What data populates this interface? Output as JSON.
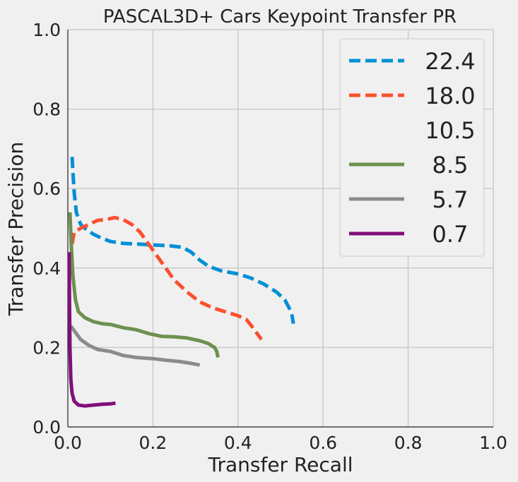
{
  "chart_data": {
    "type": "line",
    "title": "PASCAL3D+ Cars Keypoint Transfer PR",
    "xlabel": "Transfer Recall",
    "ylabel": "Transfer Precision",
    "xlim": [
      0,
      1
    ],
    "ylim": [
      0,
      1
    ],
    "xticks": [
      "0.0",
      "0.2",
      "0.4",
      "0.6",
      "0.8",
      "1.0"
    ],
    "yticks": [
      "0.0",
      "0.2",
      "0.4",
      "0.6",
      "0.8",
      "1.0"
    ],
    "grid": true,
    "legend_position": "top-right",
    "series": [
      {
        "name": "22.4",
        "color": "#008fd5",
        "style": "dashed",
        "points": [
          [
            0.01,
            0.68
          ],
          [
            0.012,
            0.64
          ],
          [
            0.015,
            0.59
          ],
          [
            0.02,
            0.54
          ],
          [
            0.03,
            0.51
          ],
          [
            0.04,
            0.5
          ],
          [
            0.06,
            0.485
          ],
          [
            0.08,
            0.475
          ],
          [
            0.1,
            0.467
          ],
          [
            0.13,
            0.462
          ],
          [
            0.17,
            0.46
          ],
          [
            0.2,
            0.458
          ],
          [
            0.24,
            0.456
          ],
          [
            0.27,
            0.452
          ],
          [
            0.29,
            0.44
          ],
          [
            0.31,
            0.42
          ],
          [
            0.33,
            0.405
          ],
          [
            0.36,
            0.393
          ],
          [
            0.4,
            0.385
          ],
          [
            0.43,
            0.375
          ],
          [
            0.46,
            0.36
          ],
          [
            0.49,
            0.34
          ],
          [
            0.51,
            0.32
          ],
          [
            0.52,
            0.3
          ],
          [
            0.527,
            0.28
          ],
          [
            0.53,
            0.26
          ]
        ]
      },
      {
        "name": "18.0",
        "color": "#fc4f30",
        "style": "dashed",
        "points": [
          [
            0.01,
            0.46
          ],
          [
            0.015,
            0.49
          ],
          [
            0.03,
            0.5
          ],
          [
            0.05,
            0.51
          ],
          [
            0.07,
            0.52
          ],
          [
            0.09,
            0.522
          ],
          [
            0.11,
            0.527
          ],
          [
            0.13,
            0.522
          ],
          [
            0.15,
            0.51
          ],
          [
            0.17,
            0.49
          ],
          [
            0.19,
            0.46
          ],
          [
            0.21,
            0.43
          ],
          [
            0.23,
            0.4
          ],
          [
            0.25,
            0.37
          ],
          [
            0.28,
            0.34
          ],
          [
            0.31,
            0.315
          ],
          [
            0.34,
            0.3
          ],
          [
            0.37,
            0.29
          ],
          [
            0.4,
            0.28
          ],
          [
            0.42,
            0.27
          ],
          [
            0.435,
            0.25
          ],
          [
            0.445,
            0.235
          ],
          [
            0.455,
            0.22
          ]
        ]
      },
      {
        "name": "10.5",
        "color": "#e5ae38",
        "style": "none",
        "points": []
      },
      {
        "name": "8.5",
        "color": "#6d904f",
        "style": "solid",
        "points": [
          [
            0.005,
            0.54
          ],
          [
            0.008,
            0.46
          ],
          [
            0.012,
            0.38
          ],
          [
            0.018,
            0.32
          ],
          [
            0.025,
            0.29
          ],
          [
            0.04,
            0.275
          ],
          [
            0.06,
            0.265
          ],
          [
            0.08,
            0.26
          ],
          [
            0.1,
            0.258
          ],
          [
            0.13,
            0.25
          ],
          [
            0.16,
            0.245
          ],
          [
            0.19,
            0.235
          ],
          [
            0.22,
            0.228
          ],
          [
            0.25,
            0.227
          ],
          [
            0.28,
            0.224
          ],
          [
            0.31,
            0.217
          ],
          [
            0.33,
            0.21
          ],
          [
            0.345,
            0.2
          ],
          [
            0.35,
            0.19
          ],
          [
            0.353,
            0.175
          ]
        ]
      },
      {
        "name": "5.7",
        "color": "#8b8b8b",
        "style": "solid",
        "points": [
          [
            0.005,
            0.255
          ],
          [
            0.01,
            0.25
          ],
          [
            0.02,
            0.235
          ],
          [
            0.03,
            0.22
          ],
          [
            0.05,
            0.205
          ],
          [
            0.07,
            0.195
          ],
          [
            0.1,
            0.19
          ],
          [
            0.13,
            0.18
          ],
          [
            0.16,
            0.175
          ],
          [
            0.2,
            0.172
          ],
          [
            0.23,
            0.168
          ],
          [
            0.26,
            0.165
          ],
          [
            0.29,
            0.16
          ],
          [
            0.31,
            0.156
          ]
        ]
      },
      {
        "name": "0.7",
        "color": "#810f7c",
        "style": "solid",
        "points": [
          [
            0.003,
            0.44
          ],
          [
            0.004,
            0.3
          ],
          [
            0.005,
            0.2
          ],
          [
            0.007,
            0.12
          ],
          [
            0.01,
            0.085
          ],
          [
            0.015,
            0.065
          ],
          [
            0.025,
            0.055
          ],
          [
            0.04,
            0.053
          ],
          [
            0.06,
            0.055
          ],
          [
            0.08,
            0.057
          ],
          [
            0.1,
            0.058
          ],
          [
            0.112,
            0.06
          ]
        ]
      }
    ]
  }
}
